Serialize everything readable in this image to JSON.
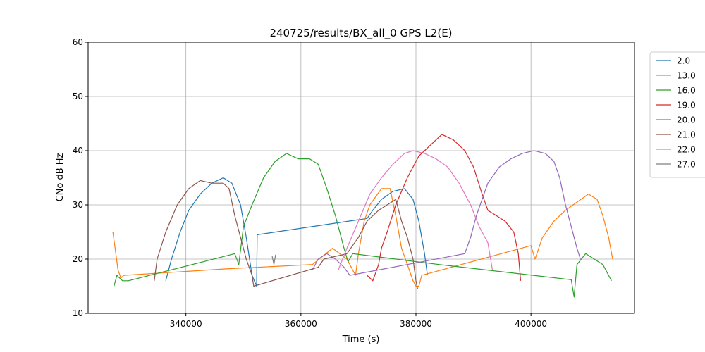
{
  "chart_data": {
    "type": "line",
    "title": "240725/results/BX_all_0 GPS L2(E)",
    "xlabel": "Time (s)",
    "ylabel": "CNo dB Hz",
    "xlim": [
      323000,
      418000
    ],
    "ylim": [
      10,
      60
    ],
    "xticks": [
      340000,
      360000,
      380000,
      400000
    ],
    "xtick_labels": [
      "340000",
      "360000",
      "380000",
      "400000"
    ],
    "yticks": [
      10,
      20,
      30,
      40,
      50,
      60
    ],
    "ytick_labels": [
      "10",
      "20",
      "30",
      "40",
      "50",
      "60"
    ],
    "grid": true,
    "legend_position": "outside-right-top",
    "series": [
      {
        "name": "2.0",
        "color": "#1f77b4",
        "points": [
          [
            336500,
            16
          ],
          [
            337500,
            20
          ],
          [
            339000,
            25
          ],
          [
            340500,
            29
          ],
          [
            342500,
            32
          ],
          [
            344500,
            34
          ],
          [
            346500,
            35
          ],
          [
            348000,
            34
          ],
          [
            349500,
            30
          ],
          [
            350500,
            24
          ],
          [
            351500,
            17
          ],
          [
            352300,
            15
          ],
          [
            352400,
            24.5
          ],
          [
            371500,
            27.5
          ],
          [
            372500,
            29
          ],
          [
            374000,
            31
          ],
          [
            376000,
            32.5
          ],
          [
            378000,
            33
          ],
          [
            379500,
            31
          ],
          [
            380500,
            27
          ],
          [
            381500,
            21
          ],
          [
            382000,
            17
          ]
        ]
      },
      {
        "name": "13.0",
        "color": "#ff7f0e",
        "points": [
          [
            327300,
            25
          ],
          [
            327700,
            22
          ],
          [
            328200,
            18
          ],
          [
            328700,
            16.5
          ],
          [
            329200,
            17
          ],
          [
            347000,
            18.2
          ],
          [
            362000,
            19
          ],
          [
            365500,
            22
          ],
          [
            368000,
            20
          ],
          [
            369500,
            17
          ],
          [
            370000,
            21
          ],
          [
            371000,
            27
          ],
          [
            372000,
            30
          ],
          [
            374000,
            33
          ],
          [
            375500,
            33
          ],
          [
            376500,
            28
          ],
          [
            377500,
            22
          ],
          [
            378500,
            19
          ],
          [
            379500,
            16
          ],
          [
            380000,
            15
          ],
          [
            380500,
            15
          ],
          [
            381000,
            17
          ],
          [
            400000,
            22.5
          ],
          [
            400700,
            20
          ],
          [
            402000,
            24
          ],
          [
            404000,
            27
          ],
          [
            406000,
            29
          ],
          [
            408000,
            30.5
          ],
          [
            410000,
            32
          ],
          [
            411500,
            31
          ],
          [
            412500,
            28
          ],
          [
            413500,
            24
          ],
          [
            414200,
            20
          ]
        ]
      },
      {
        "name": "16.0",
        "color": "#2ca02c",
        "points": [
          [
            327500,
            15
          ],
          [
            328000,
            17
          ],
          [
            329000,
            16
          ],
          [
            330000,
            16
          ],
          [
            348500,
            21
          ],
          [
            349200,
            19
          ],
          [
            350000,
            26
          ],
          [
            351500,
            30
          ],
          [
            353500,
            35
          ],
          [
            355500,
            38
          ],
          [
            357500,
            39.5
          ],
          [
            359500,
            38.5
          ],
          [
            361500,
            38.5
          ],
          [
            363000,
            37.5
          ],
          [
            364500,
            33
          ],
          [
            366000,
            28
          ],
          [
            367500,
            22
          ],
          [
            368200,
            19.5
          ],
          [
            369000,
            21
          ],
          [
            384000,
            19
          ],
          [
            407000,
            16.2
          ],
          [
            407500,
            13
          ],
          [
            408000,
            19
          ],
          [
            409500,
            21
          ],
          [
            411000,
            20
          ],
          [
            412500,
            19
          ],
          [
            413500,
            17
          ],
          [
            414000,
            16
          ]
        ]
      },
      {
        "name": "19.0",
        "color": "#d62728",
        "points": [
          [
            371500,
            17
          ],
          [
            372500,
            16
          ],
          [
            373500,
            19
          ],
          [
            374000,
            22
          ],
          [
            375000,
            25
          ],
          [
            376500,
            30
          ],
          [
            378500,
            35
          ],
          [
            380500,
            39
          ],
          [
            382500,
            41
          ],
          [
            384500,
            43
          ],
          [
            386500,
            42
          ],
          [
            388500,
            40
          ],
          [
            390000,
            37
          ],
          [
            391500,
            32
          ],
          [
            392500,
            29
          ],
          [
            394000,
            28
          ],
          [
            395500,
            27
          ],
          [
            397000,
            25
          ],
          [
            397800,
            21
          ],
          [
            398200,
            16
          ]
        ]
      },
      {
        "name": "20.0",
        "color": "#9467bd",
        "points": [
          [
            362000,
            18
          ],
          [
            363000,
            20
          ],
          [
            364500,
            21
          ],
          [
            366000,
            20
          ],
          [
            367500,
            18.5
          ],
          [
            368500,
            17
          ],
          [
            388500,
            21
          ],
          [
            389500,
            24
          ],
          [
            390500,
            28
          ],
          [
            391500,
            31
          ],
          [
            392500,
            34
          ],
          [
            394500,
            37
          ],
          [
            396500,
            38.5
          ],
          [
            398500,
            39.5
          ],
          [
            400500,
            40
          ],
          [
            402500,
            39.5
          ],
          [
            404000,
            38
          ],
          [
            405000,
            35
          ],
          [
            406000,
            30
          ],
          [
            407000,
            26
          ],
          [
            408000,
            22
          ],
          [
            408600,
            20
          ]
        ]
      },
      {
        "name": "21.0",
        "color": "#8c564b",
        "points": [
          [
            334500,
            16
          ],
          [
            335000,
            20
          ],
          [
            336500,
            25
          ],
          [
            338500,
            30
          ],
          [
            340500,
            33
          ],
          [
            342500,
            34.5
          ],
          [
            344500,
            34
          ],
          [
            346500,
            34
          ],
          [
            347500,
            33
          ],
          [
            348500,
            28
          ],
          [
            349500,
            24
          ],
          [
            350500,
            20
          ],
          [
            351500,
            17
          ],
          [
            351800,
            15
          ],
          [
            363000,
            18.5
          ],
          [
            364000,
            20
          ],
          [
            368000,
            21
          ],
          [
            370000,
            24
          ],
          [
            371500,
            27
          ],
          [
            373500,
            29
          ],
          [
            375000,
            30
          ],
          [
            376500,
            31
          ],
          [
            377500,
            27
          ],
          [
            378500,
            24
          ],
          [
            379500,
            20
          ],
          [
            380000,
            16
          ],
          [
            380300,
            14.5
          ]
        ]
      },
      {
        "name": "22.0",
        "color": "#e377c2",
        "points": [
          [
            366500,
            18
          ],
          [
            368000,
            22
          ],
          [
            370000,
            27
          ],
          [
            372000,
            32
          ],
          [
            374000,
            35
          ],
          [
            376000,
            37.5
          ],
          [
            378000,
            39.5
          ],
          [
            379500,
            40
          ],
          [
            381500,
            39.5
          ],
          [
            383500,
            38.5
          ],
          [
            385500,
            37
          ],
          [
            387500,
            34
          ],
          [
            389500,
            30
          ],
          [
            391000,
            26
          ],
          [
            392500,
            23
          ],
          [
            393300,
            18
          ]
        ]
      },
      {
        "name": "27.0",
        "color": "#7f7f7f",
        "points": [
          [
            355000,
            20.5
          ],
          [
            355300,
            19
          ],
          [
            355600,
            20.8
          ]
        ]
      }
    ]
  }
}
